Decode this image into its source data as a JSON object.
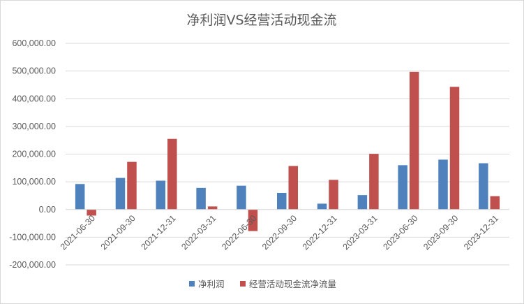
{
  "chart_data": {
    "type": "bar",
    "title": "净利润VS经营活动现金流",
    "categories": [
      "2021-06-30",
      "2021-09-30",
      "2021-12-31",
      "2022-03-31",
      "2022-06-30",
      "2022-09-30",
      "2022-12-31",
      "2023-03-31",
      "2023-06-30",
      "2023-09-30",
      "2023-12-31"
    ],
    "series": [
      {
        "name": "净利润",
        "color": "#4f81bd",
        "values": [
          92000,
          114000,
          104000,
          78000,
          86000,
          60000,
          21000,
          52000,
          160000,
          180000,
          167000
        ]
      },
      {
        "name": "经营活动现金流净流量",
        "color": "#c0504d",
        "values": [
          -22000,
          172000,
          255000,
          11000,
          -78000,
          157000,
          107000,
          201000,
          497000,
          443000,
          48000
        ]
      }
    ],
    "ylim": [
      -200000,
      600000
    ],
    "yticks": [
      600000,
      500000,
      400000,
      300000,
      200000,
      100000,
      0,
      -100000,
      -200000
    ],
    "ytick_labels": [
      "600,000.00",
      "500,000.00",
      "400,000.00",
      "300,000.00",
      "200,000.00",
      "100,000.00",
      "0.00",
      "-100,000.00",
      "-200,000.00"
    ],
    "grid": true,
    "legend_position": "bottom"
  }
}
